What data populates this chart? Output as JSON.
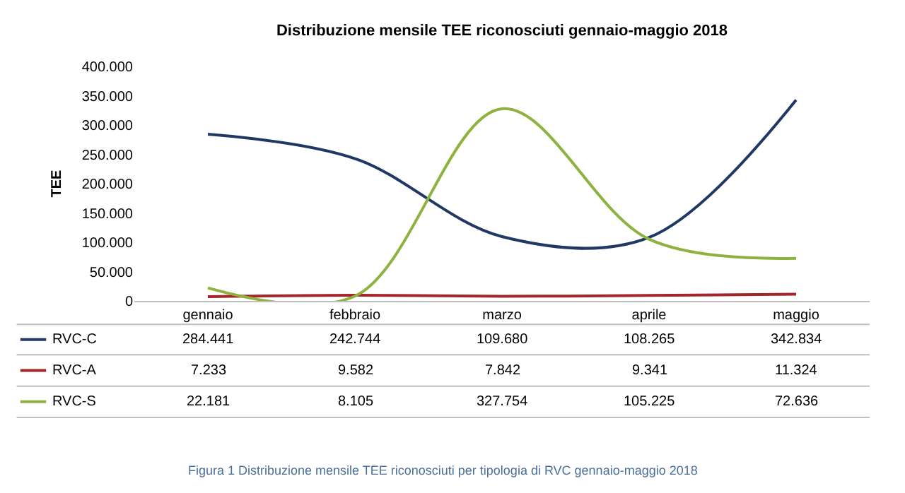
{
  "chart_data": {
    "type": "line",
    "title": "Distribuzione mensile TEE riconosciuti gennaio-maggio 2018",
    "ylabel": "TEE",
    "categories": [
      "gennaio",
      "febbraio",
      "marzo",
      "aprile",
      "maggio"
    ],
    "series": [
      {
        "name": "RVC-C",
        "color": "#203864",
        "values": [
          284441,
          242744,
          109680,
          108265,
          342834
        ],
        "value_labels": [
          "284.441",
          "242.744",
          "109.680",
          "108.265",
          "342.834"
        ]
      },
      {
        "name": "RVC-A",
        "color": "#a3262a",
        "values": [
          7233,
          9582,
          7842,
          9341,
          11324
        ],
        "value_labels": [
          "7.233",
          "9.582",
          "7.842",
          "9.341",
          "11.324"
        ]
      },
      {
        "name": "RVC-S",
        "color": "#8eb23f",
        "values": [
          22181,
          8105,
          327754,
          105225,
          72636
        ],
        "value_labels": [
          "22.181",
          "8.105",
          "327.754",
          "105.225",
          "72.636"
        ]
      }
    ],
    "ylim": [
      0,
      400000
    ],
    "yticks": [
      {
        "value": 0,
        "label": "0"
      },
      {
        "value": 50000,
        "label": "50.000"
      },
      {
        "value": 100000,
        "label": "100.000"
      },
      {
        "value": 150000,
        "label": "150.000"
      },
      {
        "value": 200000,
        "label": "200.000"
      },
      {
        "value": 250000,
        "label": "250.000"
      },
      {
        "value": 300000,
        "label": "300.000"
      },
      {
        "value": 350000,
        "label": "350.000"
      },
      {
        "value": 400000,
        "label": "400.000"
      }
    ],
    "grid": false,
    "legend": "bottom left",
    "line_style": "solid",
    "annotations": [
      "Figura 1 Distribuzione mensile TEE riconosciuti per tipologia di RVC gennaio-maggio 2018"
    ]
  }
}
